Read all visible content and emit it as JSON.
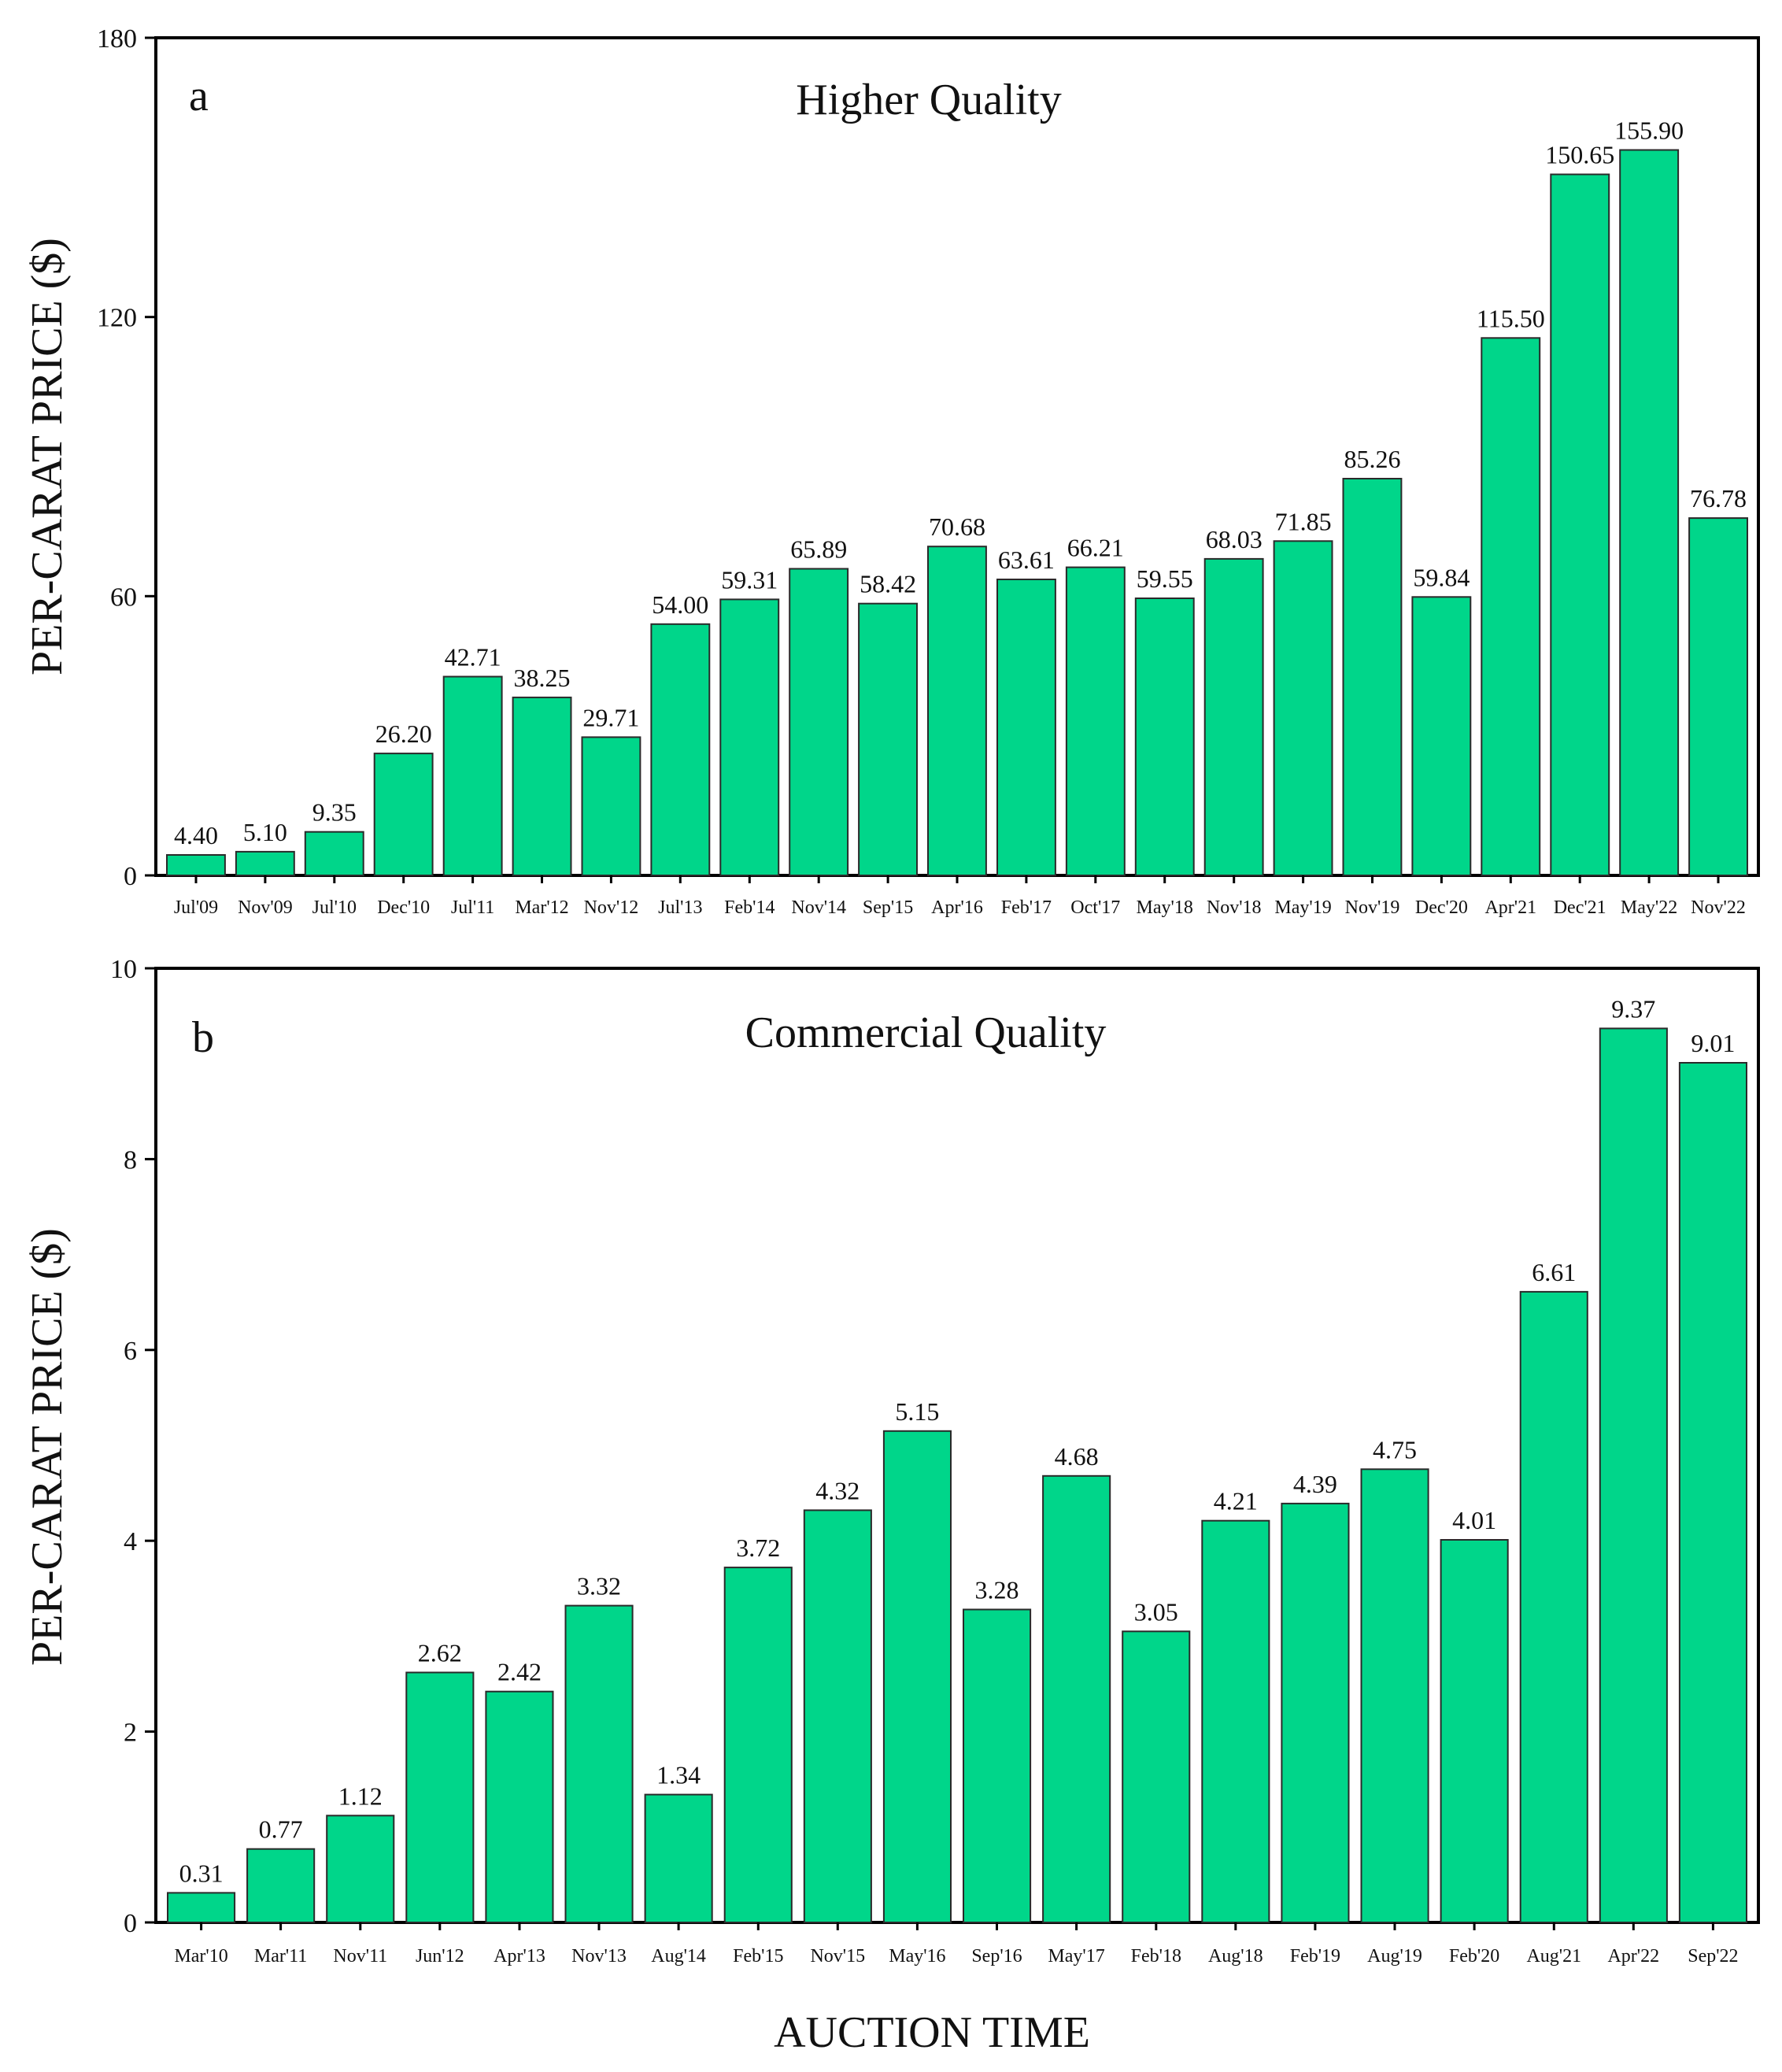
{
  "chart_data": [
    {
      "type": "bar",
      "panel_letter": "a",
      "title": "Higher Quality",
      "ylabel": "PER-CARAT PRICE  ($)",
      "xlabel": "",
      "ylim": [
        0,
        180
      ],
      "yticks": [
        0,
        60,
        120,
        180
      ],
      "categories": [
        "Jul'09",
        "Nov'09",
        "Jul'10",
        "Dec'10",
        "Jul'11",
        "Mar'12",
        "Nov'12",
        "Jul'13",
        "Feb'14",
        "Nov'14",
        "Sep'15",
        "Apr'16",
        "Feb'17",
        "Oct'17",
        "May'18",
        "Nov'18",
        "May'19",
        "Nov'19",
        "Dec'20",
        "Apr'21",
        "Dec'21",
        "May'22",
        "Nov'22"
      ],
      "values": [
        4.4,
        5.1,
        9.35,
        26.2,
        42.71,
        38.25,
        29.71,
        54.0,
        59.31,
        65.89,
        58.42,
        70.68,
        63.61,
        66.21,
        59.55,
        68.03,
        71.85,
        85.26,
        59.84,
        115.5,
        150.65,
        155.9,
        76.78
      ],
      "value_labels": [
        "4.40",
        "5.10",
        "9.35",
        "26.20",
        "42.71",
        "38.25",
        "29.71",
        "54.00",
        "59.31",
        "65.89",
        "58.42",
        "70.68",
        "63.61",
        "66.21",
        "59.55",
        "68.03",
        "71.85",
        "85.26",
        "59.84",
        "115.50",
        "150.65",
        "155.90",
        "76.78"
      ],
      "bar_color": "#00d68a"
    },
    {
      "type": "bar",
      "panel_letter": "b",
      "title": "Commercial Quality",
      "ylabel": "PER-CARAT PRICE  ($)",
      "xlabel": "AUCTION TIME",
      "ylim": [
        0,
        10
      ],
      "yticks": [
        0,
        2,
        4,
        6,
        8,
        10
      ],
      "categories": [
        "Mar'10",
        "Mar'11",
        "Nov'11",
        "Jun'12",
        "Apr'13",
        "Nov'13",
        "Aug'14",
        "Feb'15",
        "Nov'15",
        "May'16",
        "Sep'16",
        "May'17",
        "Feb'18",
        "Aug'18",
        "Feb'19",
        "Aug'19",
        "Feb'20",
        "Aug'21",
        "Apr'22",
        "Sep'22"
      ],
      "values": [
        0.31,
        0.77,
        1.12,
        2.62,
        2.42,
        3.32,
        1.34,
        3.72,
        4.32,
        5.15,
        3.28,
        4.68,
        3.05,
        4.21,
        4.39,
        4.75,
        4.01,
        6.61,
        9.37,
        9.01
      ],
      "value_labels": [
        "0.31",
        "0.77",
        "1.12",
        "2.62",
        "2.42",
        "3.32",
        "1.34",
        "3.72",
        "4.32",
        "5.15",
        "3.28",
        "4.68",
        "3.05",
        "4.21",
        "4.39",
        "4.75",
        "4.01",
        "6.61",
        "9.37",
        "9.01"
      ],
      "bar_color": "#00d68a"
    }
  ]
}
